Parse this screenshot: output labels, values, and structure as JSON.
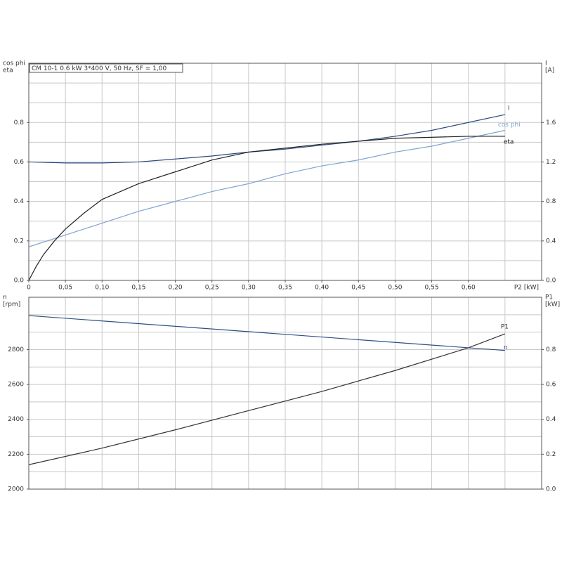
{
  "chart_data": [
    {
      "type": "line",
      "annotation": "CM 10-1   0.6 kW   3*400 V, 50 Hz, SF = 1,00",
      "ylabel": [
        "cos phi",
        "eta"
      ],
      "y2label": [
        "I",
        "[A]"
      ],
      "xlabel": "P2 [kW]",
      "xlim": [
        0,
        0.7
      ],
      "xticks": [
        0,
        {
          "value": 0.05,
          "label": "0,05"
        },
        {
          "value": 0.1,
          "label": "0,10"
        },
        {
          "value": 0.15,
          "label": "0,15"
        },
        {
          "value": 0.2,
          "label": "0,20"
        },
        {
          "value": 0.25,
          "label": "0,25"
        },
        {
          "value": 0.3,
          "label": "0,30"
        },
        {
          "value": 0.35,
          "label": "0,35"
        },
        {
          "value": 0.4,
          "label": "0,40"
        },
        {
          "value": 0.45,
          "label": "0,45"
        },
        {
          "value": 0.5,
          "label": "0,50"
        },
        {
          "value": 0.55,
          "label": "0,55"
        },
        {
          "value": 0.6,
          "label": "0,60"
        }
      ],
      "xgrid": [
        0.05,
        0.1,
        0.15,
        0.2,
        0.25,
        0.3,
        0.35,
        0.4,
        0.45,
        0.5,
        0.55,
        0.6,
        0.65
      ],
      "ylim": [
        0,
        1.1
      ],
      "yticks": [
        {
          "value": 0,
          "label": "0.0"
        },
        0.2,
        0.4,
        0.6,
        0.8
      ],
      "ygrid": [
        0.1,
        0.2,
        0.3,
        0.4,
        0.5,
        0.6,
        0.7,
        0.8,
        0.9,
        1.0
      ],
      "y2lim": [
        0,
        2.2
      ],
      "y2ticks": [
        {
          "value": 0,
          "label": "0.0"
        },
        0.4,
        0.8,
        1.2,
        1.6
      ],
      "series": [
        {
          "name": "I",
          "color": "#2b4a80",
          "axis": "y2",
          "x": [
            0,
            0.05,
            0.1,
            0.15,
            0.2,
            0.25,
            0.3,
            0.35,
            0.4,
            0.45,
            0.5,
            0.55,
            0.6,
            0.65
          ],
          "values": [
            1.2,
            1.19,
            1.19,
            1.2,
            1.23,
            1.26,
            1.3,
            1.33,
            1.37,
            1.41,
            1.46,
            1.52,
            1.6,
            1.68
          ]
        },
        {
          "name": "cos phi",
          "color": "#7fa3d4",
          "x": [
            0,
            0.05,
            0.1,
            0.15,
            0.2,
            0.25,
            0.3,
            0.35,
            0.4,
            0.45,
            0.5,
            0.55,
            0.6,
            0.65
          ],
          "values": [
            0.17,
            0.23,
            0.29,
            0.35,
            0.4,
            0.45,
            0.49,
            0.54,
            0.58,
            0.61,
            0.65,
            0.68,
            0.72,
            0.76
          ]
        },
        {
          "name": "eta",
          "color": "#222222",
          "x": [
            0,
            0.01,
            0.02,
            0.035,
            0.05,
            0.075,
            0.1,
            0.15,
            0.2,
            0.25,
            0.3,
            0.4,
            0.5,
            0.6,
            0.65
          ],
          "values": [
            0,
            0.07,
            0.13,
            0.2,
            0.26,
            0.34,
            0.41,
            0.49,
            0.55,
            0.61,
            0.65,
            0.69,
            0.72,
            0.73,
            0.73
          ]
        }
      ]
    },
    {
      "type": "line",
      "ylabel": [
        "n",
        "[rpm]"
      ],
      "y2label": [
        "P1",
        "[kW]"
      ],
      "xlim": [
        0,
        0.7
      ],
      "xgrid": [
        0.05,
        0.1,
        0.15,
        0.2,
        0.25,
        0.3,
        0.35,
        0.4,
        0.45,
        0.5,
        0.55,
        0.6,
        0.65
      ],
      "ylim": [
        2000,
        3100
      ],
      "yticks": [
        2000,
        2200,
        2400,
        2600,
        2800
      ],
      "ygrid": [
        2100,
        2200,
        2300,
        2400,
        2500,
        2600,
        2700,
        2800,
        2900,
        3000
      ],
      "y2lim": [
        0,
        1.1
      ],
      "y2ticks": [
        {
          "value": 0,
          "label": "0.0"
        },
        0.2,
        0.4,
        0.6,
        0.8
      ],
      "series": [
        {
          "name": "P1",
          "color": "#333333",
          "axis": "y2",
          "x": [
            0,
            0.1,
            0.2,
            0.3,
            0.4,
            0.5,
            0.6,
            0.65
          ],
          "values": [
            0.14,
            0.235,
            0.34,
            0.45,
            0.56,
            0.68,
            0.81,
            0.89
          ]
        },
        {
          "name": "n",
          "color": "#2d4f86",
          "x": [
            0,
            0.65
          ],
          "values": [
            2995,
            2795
          ]
        }
      ]
    }
  ]
}
